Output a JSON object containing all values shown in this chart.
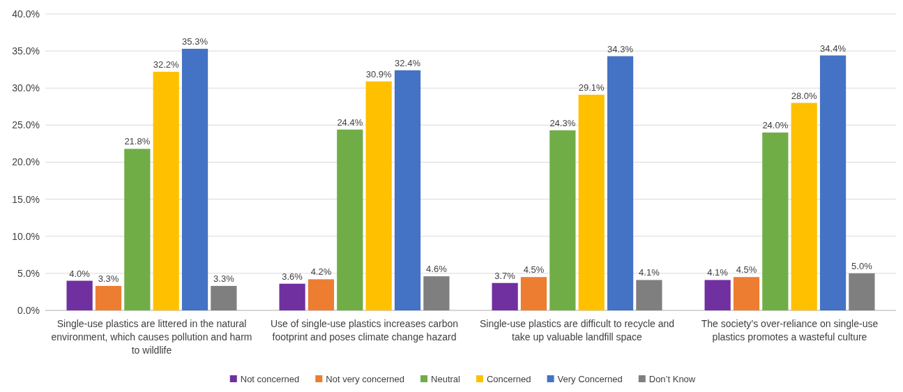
{
  "chart_data": {
    "type": "bar",
    "categories": [
      "Single-use plastics are littered in the natural environment, which causes pollution and harm to wildlife",
      "Use of single-use plastics increases carbon footprint and poses climate change hazard",
      "Single-use plastics are difficult to recycle and take up valuable landfill space",
      "The society’s over-reliance on single-use plastics promotes a wasteful culture"
    ],
    "series": [
      {
        "name": "Not concerned",
        "color": "#7030a0",
        "values": [
          4.0,
          3.6,
          3.7,
          4.1
        ],
        "value_labels": [
          "4.0%",
          "3.6%",
          "3.7%",
          "4.1%"
        ]
      },
      {
        "name": "Not very concerned",
        "color": "#ed7d31",
        "values": [
          3.3,
          4.2,
          4.5,
          4.5
        ],
        "value_labels": [
          "3.3%",
          "4.2%",
          "4.5%",
          "4.5%"
        ]
      },
      {
        "name": "Neutral",
        "color": "#70ad47",
        "values": [
          21.8,
          24.4,
          24.3,
          24.0
        ],
        "value_labels": [
          "21.8%",
          "24.4%",
          "24.3%",
          "24.0%"
        ]
      },
      {
        "name": "Concerned",
        "color": "#ffc000",
        "values": [
          32.2,
          30.9,
          29.1,
          28.0
        ],
        "value_labels": [
          "32.2%",
          "30.9%",
          "29.1%",
          "28.0%"
        ]
      },
      {
        "name": "Very Concerned",
        "color": "#4472c4",
        "values": [
          35.3,
          32.4,
          34.3,
          34.4
        ],
        "value_labels": [
          "35.3%",
          "32.4%",
          "34.3%",
          "34.4%"
        ]
      },
      {
        "name": "Don’t Know",
        "color": "#7f7f7f",
        "values": [
          3.3,
          4.6,
          4.1,
          5.0
        ],
        "value_labels": [
          "3.3%",
          "4.6%",
          "4.1%",
          "5.0%"
        ]
      }
    ],
    "ylim": [
      0,
      40
    ],
    "yticks": [
      {
        "value": 0,
        "label": "0.0%"
      },
      {
        "value": 5,
        "label": "5.0%"
      },
      {
        "value": 10,
        "label": "10.0%"
      },
      {
        "value": 15,
        "label": "15.0%"
      },
      {
        "value": 20,
        "label": "20.0%"
      },
      {
        "value": 25,
        "label": "25.0%"
      },
      {
        "value": 30,
        "label": "30.0%"
      },
      {
        "value": 35,
        "label": "35.0%"
      },
      {
        "value": 40,
        "label": "40.0%"
      }
    ],
    "grid": "y",
    "legend": "bottom"
  }
}
